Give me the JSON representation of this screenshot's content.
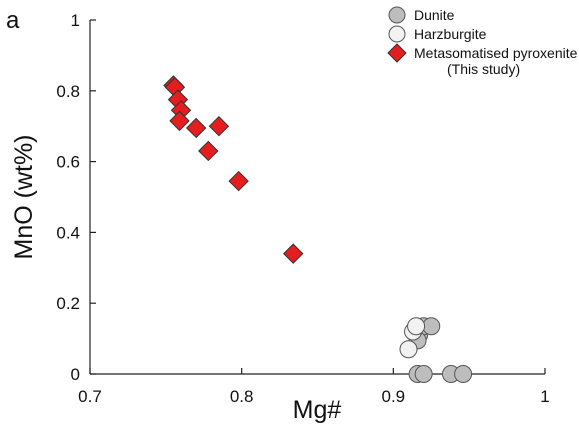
{
  "panel_label": "a",
  "chart_data": {
    "type": "scatter",
    "xlabel": "Mg#",
    "ylabel": "MnO (wt%)",
    "xlim": [
      0.7,
      1.0
    ],
    "ylim": [
      0,
      1.0
    ],
    "x_ticks": [
      "0.7",
      "0.8",
      "0.9",
      "1"
    ],
    "y_ticks": [
      "0",
      "0.2",
      "0.4",
      "0.6",
      "0.8",
      "1"
    ],
    "legend_position": "top-right",
    "grid": false,
    "series": [
      {
        "name": "Dunite",
        "marker": "circle",
        "color": "#bdbdbd",
        "points": [
          {
            "x": 0.916,
            "y": 0.0
          },
          {
            "x": 0.92,
            "y": 0.0
          },
          {
            "x": 0.938,
            "y": 0.0
          },
          {
            "x": 0.946,
            "y": 0.0
          },
          {
            "x": 0.917,
            "y": 0.11
          },
          {
            "x": 0.92,
            "y": 0.135
          },
          {
            "x": 0.916,
            "y": 0.095
          },
          {
            "x": 0.925,
            "y": 0.135
          }
        ]
      },
      {
        "name": "Harzburgite",
        "marker": "circle",
        "color": "#f2f2f2",
        "points": [
          {
            "x": 0.91,
            "y": 0.07
          },
          {
            "x": 0.913,
            "y": 0.12
          },
          {
            "x": 0.915,
            "y": 0.135
          }
        ]
      },
      {
        "name": "Metasomatised pyroxenite",
        "name_line2": "(This study)",
        "marker": "diamond",
        "color": "#e41e1e",
        "points": [
          {
            "x": 0.755,
            "y": 0.815
          },
          {
            "x": 0.756,
            "y": 0.81
          },
          {
            "x": 0.758,
            "y": 0.775
          },
          {
            "x": 0.76,
            "y": 0.745
          },
          {
            "x": 0.759,
            "y": 0.715
          },
          {
            "x": 0.77,
            "y": 0.695
          },
          {
            "x": 0.785,
            "y": 0.7
          },
          {
            "x": 0.778,
            "y": 0.63
          },
          {
            "x": 0.798,
            "y": 0.545
          },
          {
            "x": 0.834,
            "y": 0.34
          }
        ]
      }
    ]
  }
}
